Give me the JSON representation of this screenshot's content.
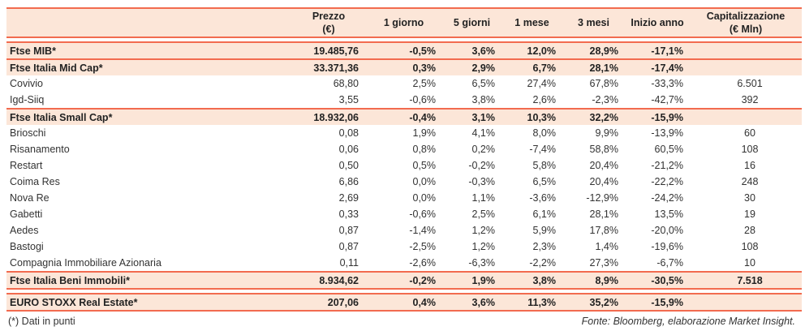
{
  "header": {
    "name": "",
    "prezzo": "Prezzo",
    "prezzo_unit": "(€)",
    "d1": "1 giorno",
    "d5": "5 giorni",
    "m1": "1 mese",
    "m3": "3 mesi",
    "ytd": "Inizio anno",
    "cap": "Capitalizzazione",
    "cap_unit": "(€ Mln)"
  },
  "colors": {
    "accent_line": "#f26b4f",
    "highlight_fill": "#fce6d8"
  },
  "rows": [
    {
      "name": "Ftse MIB*",
      "prezzo": "19.485,76",
      "d1": "-0,5%",
      "d5": "3,6%",
      "m1": "12,0%",
      "m3": "28,9%",
      "ytd": "-17,1%",
      "cap": "",
      "bold": true
    },
    {
      "name": "Ftse Italia Mid Cap*",
      "prezzo": "33.371,36",
      "d1": "0,3%",
      "d5": "2,9%",
      "m1": "6,7%",
      "m3": "28,1%",
      "ytd": "-17,4%",
      "cap": "",
      "bold": true
    },
    {
      "name": "Covivio",
      "prezzo": "68,80",
      "d1": "2,5%",
      "d5": "6,5%",
      "m1": "27,4%",
      "m3": "67,8%",
      "ytd": "-33,3%",
      "cap": "6.501"
    },
    {
      "name": "Igd-Siiq",
      "prezzo": "3,55",
      "d1": "-0,6%",
      "d5": "3,8%",
      "m1": "2,6%",
      "m3": "-2,3%",
      "ytd": "-42,7%",
      "cap": "392"
    },
    {
      "name": "Ftse Italia Small Cap*",
      "prezzo": "18.932,06",
      "d1": "-0,4%",
      "d5": "3,1%",
      "m1": "10,3%",
      "m3": "32,2%",
      "ytd": "-15,9%",
      "cap": "",
      "bold": true
    },
    {
      "name": "Brioschi",
      "prezzo": "0,08",
      "d1": "1,9%",
      "d5": "4,1%",
      "m1": "8,0%",
      "m3": "9,9%",
      "ytd": "-13,9%",
      "cap": "60"
    },
    {
      "name": "Risanamento",
      "prezzo": "0,06",
      "d1": "0,8%",
      "d5": "0,2%",
      "m1": "-7,4%",
      "m3": "58,8%",
      "ytd": "60,5%",
      "cap": "108"
    },
    {
      "name": "Restart",
      "prezzo": "0,50",
      "d1": "0,5%",
      "d5": "-0,2%",
      "m1": "5,8%",
      "m3": "20,4%",
      "ytd": "-21,2%",
      "cap": "16"
    },
    {
      "name": "Coima Res",
      "prezzo": "6,86",
      "d1": "0,0%",
      "d5": "-0,3%",
      "m1": "6,5%",
      "m3": "20,4%",
      "ytd": "-22,2%",
      "cap": "248"
    },
    {
      "name": "Nova Re",
      "prezzo": "2,69",
      "d1": "0,0%",
      "d5": "1,1%",
      "m1": "-3,6%",
      "m3": "-12,9%",
      "ytd": "-24,2%",
      "cap": "30"
    },
    {
      "name": "Gabetti",
      "prezzo": "0,33",
      "d1": "-0,6%",
      "d5": "2,5%",
      "m1": "6,1%",
      "m3": "28,1%",
      "ytd": "13,5%",
      "cap": "19"
    },
    {
      "name": "Aedes",
      "prezzo": "0,87",
      "d1": "-1,4%",
      "d5": "1,2%",
      "m1": "5,9%",
      "m3": "17,8%",
      "ytd": "-20,0%",
      "cap": "28"
    },
    {
      "name": "Bastogi",
      "prezzo": "0,87",
      "d1": "-2,5%",
      "d5": "1,2%",
      "m1": "2,3%",
      "m3": "1,4%",
      "ytd": "-19,6%",
      "cap": "108"
    },
    {
      "name": "Compagnia Immobiliare Azionaria",
      "prezzo": "0,11",
      "d1": "-2,6%",
      "d5": "-6,3%",
      "m1": "-2,2%",
      "m3": "27,3%",
      "ytd": "-6,7%",
      "cap": "10"
    },
    {
      "name": "Ftse Italia Beni Immobili*",
      "prezzo": "8.934,62",
      "d1": "-0,2%",
      "d5": "1,9%",
      "m1": "3,8%",
      "m3": "8,9%",
      "ytd": "-30,5%",
      "cap": "7.518",
      "bold": true
    }
  ],
  "euro": {
    "name": "EURO STOXX Real Estate*",
    "prezzo": "207,06",
    "d1": "0,4%",
    "d5": "3,6%",
    "m1": "11,3%",
    "m3": "35,2%",
    "ytd": "-15,9%",
    "cap": ""
  },
  "footer": {
    "note": "(*) Dati in punti",
    "source": "Fonte: Bloomberg, elaborazione Market Insight."
  }
}
